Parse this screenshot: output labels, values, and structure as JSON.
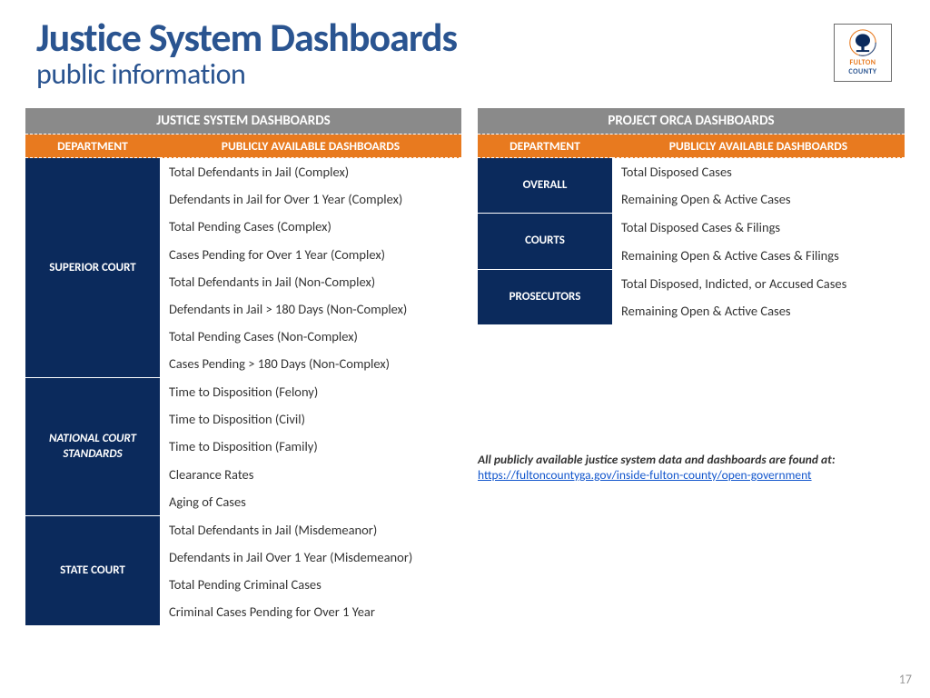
{
  "header": {
    "title": "Justice System Dashboards",
    "subtitle": "public information",
    "logo_line1": "FULTON",
    "logo_line2": "COUNTY"
  },
  "colors": {
    "brand_blue": "#2a5490",
    "navy": "#0b2a5c",
    "orange": "#e87a1f",
    "gray_header": "#8a8a8a",
    "text": "#333333",
    "link": "#1155cc",
    "page_num": "#9a9a9a",
    "bg": "#ffffff"
  },
  "left_panel": {
    "title": "JUSTICE SYSTEM DASHBOARDS",
    "col1": "DEPARTMENT",
    "col2": "PUBLICLY AVAILABLE DASHBOARDS",
    "groups": [
      {
        "label": "SUPERIOR COURT",
        "italic": false,
        "items": [
          "Total Defendants in Jail (Complex)",
          "Defendants in Jail for Over 1 Year (Complex)",
          "Total Pending Cases (Complex)",
          "Cases Pending for Over 1 Year (Complex)",
          "Total Defendants in Jail (Non-Complex)",
          "Defendants in Jail > 180 Days (Non-Complex)",
          "Total Pending Cases (Non-Complex)",
          "Cases Pending > 180 Days (Non-Complex)"
        ]
      },
      {
        "label": "NATIONAL COURT STANDARDS",
        "italic": true,
        "items": [
          "Time to Disposition (Felony)",
          "Time to Disposition (Civil)",
          "Time to Disposition (Family)",
          "Clearance Rates",
          "Aging of Cases"
        ]
      },
      {
        "label": "STATE COURT",
        "italic": false,
        "items": [
          "Total Defendants in Jail (Misdemeanor)",
          "Defendants in Jail Over 1 Year (Misdemeanor)",
          "Total Pending Criminal Cases",
          "Criminal Cases Pending for Over 1 Year"
        ]
      }
    ]
  },
  "right_panel": {
    "title": "PROJECT ORCA DASHBOARDS",
    "col1": "DEPARTMENT",
    "col2": "PUBLICLY AVAILABLE DASHBOARDS",
    "groups": [
      {
        "label": "OVERALL",
        "italic": false,
        "items": [
          "Total Disposed Cases",
          "Remaining Open & Active Cases"
        ]
      },
      {
        "label": "COURTS",
        "italic": false,
        "items": [
          "Total Disposed Cases & Filings",
          "Remaining Open & Active Cases & Filings"
        ]
      },
      {
        "label": "PROSECUTORS",
        "italic": false,
        "items": [
          "Total Disposed, Indicted, or Accused Cases",
          "Remaining Open & Active Cases"
        ]
      }
    ]
  },
  "note": {
    "text": "All publicly available justice system data and dashboards are found at",
    "colon": ":",
    "link": "https://fultoncountyga.gov/inside-fulton-county/open-government"
  },
  "page_number": "17"
}
